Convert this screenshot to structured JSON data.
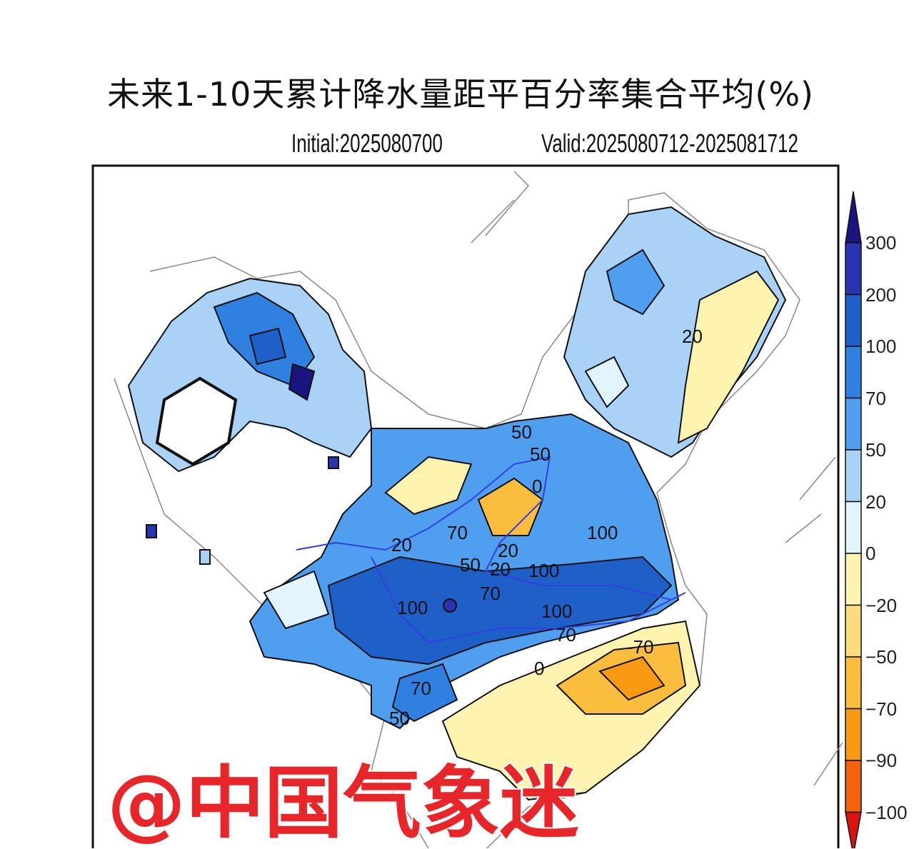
{
  "title": "未来1-10天累计降水量距平百分率集合平均(%)",
  "initial": "Initial:2025080700",
  "valid": "Valid:2025080712-2025081712",
  "colorbar": {
    "labels": [
      "300",
      "200",
      "100",
      "70",
      "50",
      "20",
      "0",
      "−20",
      "−50",
      "−70",
      "−90",
      "−100"
    ],
    "colors": [
      "#1a1480",
      "#2b34b0",
      "#1f5fc8",
      "#2f80e0",
      "#4f9ef0",
      "#a9d2f6",
      "#e2f5ff",
      "#fff3b0",
      "#fddc80",
      "#fbbd3e",
      "#f99a12",
      "#f4620e",
      "#d8140e"
    ]
  },
  "contour_labels": [
    "20",
    "50",
    "50",
    "0",
    "70",
    "20",
    "20",
    "100",
    "50",
    "20",
    "100",
    "70",
    "100",
    "100",
    "70",
    "-70",
    "0",
    "70",
    "50"
  ],
  "watermark": "@中国气象迷"
}
